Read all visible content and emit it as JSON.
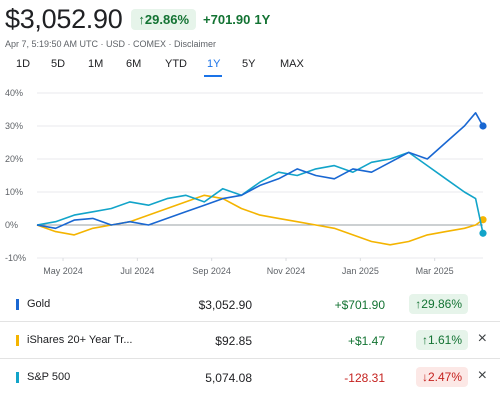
{
  "header": {
    "price": "$3,052.90",
    "pct_change": "↑29.86%",
    "abs_change": "+701.90",
    "period": "1Y",
    "meta": "Apr 7, 5:19:50 AM UTC · USD · COMEX · Disclaimer"
  },
  "range_tabs": [
    "1D",
    "5D",
    "1M",
    "6M",
    "YTD",
    "1Y",
    "5Y",
    "MAX"
  ],
  "active_range": "1Y",
  "colors": {
    "gold": "#1967d2",
    "treasury": "#f4b400",
    "sp500": "#12a4c9",
    "positive": "#137333",
    "negative": "#c5221f"
  },
  "rows": [
    {
      "name": "Gold",
      "price": "$3,052.90",
      "change": "+$701.90",
      "pct": "↑29.86%",
      "removable": false
    },
    {
      "name": "iShares 20+ Year Tr...",
      "price": "$92.85",
      "change": "+$1.47",
      "pct": "↑1.61%",
      "removable": true,
      "remove_icon": "×"
    },
    {
      "name": "S&P 500",
      "price": "5,074.08",
      "change": "-128.31",
      "pct": "↓2.47%",
      "removable": true,
      "remove_icon": "×"
    }
  ],
  "chart_data": {
    "type": "line",
    "x_ticks": [
      "May 2024",
      "Jul 2024",
      "Sep 2024",
      "Nov 2024",
      "Jan 2025",
      "Mar 2025"
    ],
    "y_ticks": [
      "40%",
      "30%",
      "20%",
      "10%",
      "0%",
      "-10%"
    ],
    "ylim": [
      -10,
      40
    ],
    "x_range": [
      0,
      12
    ],
    "grid": true,
    "series": [
      {
        "name": "Gold",
        "color": "#1967d2",
        "x": [
          0,
          0.5,
          1.0,
          1.5,
          2.0,
          2.5,
          3.0,
          3.5,
          4.0,
          4.5,
          5.0,
          5.5,
          6.0,
          6.5,
          7.0,
          7.5,
          8.0,
          8.5,
          9.0,
          9.5,
          10.0,
          10.5,
          11.0,
          11.5,
          11.8,
          12.0
        ],
        "y": [
          0,
          -1,
          1.5,
          2,
          0,
          1,
          0,
          2,
          4,
          6,
          8,
          9,
          12,
          14,
          17,
          15,
          14,
          17,
          16,
          19,
          22,
          20,
          25,
          30,
          34,
          30
        ]
      },
      {
        "name": "iShares 20+ Year Treasury",
        "color": "#f4b400",
        "x": [
          0,
          0.5,
          1.0,
          1.5,
          2.0,
          2.5,
          3.0,
          3.5,
          4.0,
          4.5,
          5.0,
          5.5,
          6.0,
          6.5,
          7.0,
          7.5,
          8.0,
          8.5,
          9.0,
          9.5,
          10.0,
          10.5,
          11.0,
          11.5,
          11.8,
          12.0
        ],
        "y": [
          0,
          -2,
          -3,
          -1,
          0,
          1,
          3,
          5,
          7,
          9,
          8,
          5,
          3,
          2,
          1,
          0,
          -1,
          -3,
          -5,
          -6,
          -5,
          -3,
          -2,
          -1,
          0,
          1.6
        ]
      },
      {
        "name": "S&P 500",
        "color": "#12a4c9",
        "x": [
          0,
          0.5,
          1.0,
          1.5,
          2.0,
          2.5,
          3.0,
          3.5,
          4.0,
          4.5,
          5.0,
          5.5,
          6.0,
          6.5,
          7.0,
          7.5,
          8.0,
          8.5,
          9.0,
          9.5,
          10.0,
          10.5,
          11.0,
          11.5,
          11.8,
          12.0
        ],
        "y": [
          0,
          1,
          3,
          4,
          5,
          7,
          6,
          8,
          9,
          7,
          11,
          9,
          13,
          16,
          15,
          17,
          18,
          16,
          19,
          20,
          22,
          18,
          14,
          10,
          8,
          -2.5
        ]
      }
    ]
  }
}
